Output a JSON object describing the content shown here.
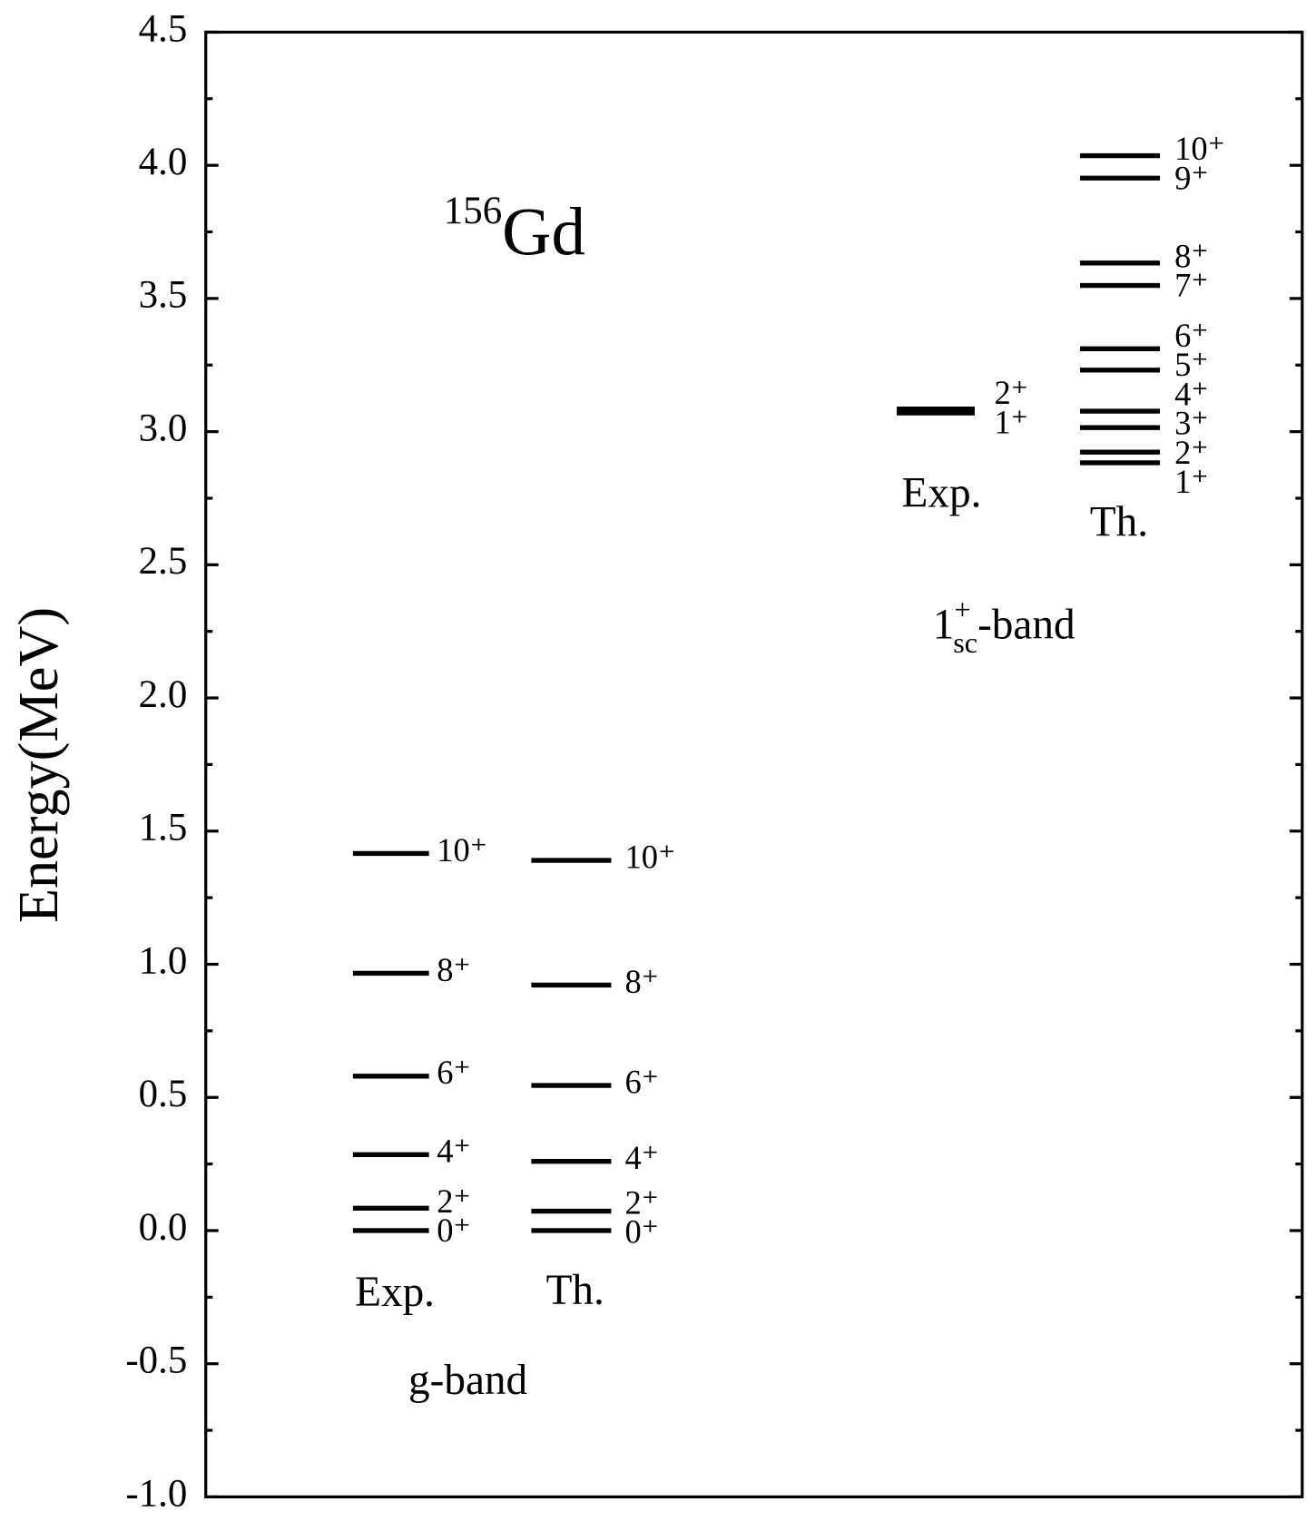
{
  "chart_data": {
    "type": "level-scheme",
    "title": {
      "mass": "156",
      "symbol": "Gd"
    },
    "ylabel": "Energy(MeV)",
    "ylim": [
      -1.0,
      4.5
    ],
    "yticks": [
      {
        "value": -1.0,
        "label": "-1.0"
      },
      -0.5,
      {
        "value": 0.0,
        "label": "0.0"
      },
      0.5,
      {
        "value": 1.0,
        "label": "1.0"
      },
      1.5,
      {
        "value": 2.0,
        "label": "2.0"
      },
      2.5,
      {
        "value": 3.0,
        "label": "3.0"
      },
      3.5,
      {
        "value": 4.0,
        "label": "4.0"
      },
      4.5
    ],
    "color": "#000000",
    "bands": [
      {
        "name": "g-band",
        "columns": [
          {
            "name": "Exp.",
            "levels": [
              0,
              0.084,
              0.285,
              0.58,
              0.966,
              1.416
            ],
            "labels": [
              "0⁺",
              "2⁺",
              "4⁺",
              "6⁺",
              "8⁺",
              "10⁺"
            ]
          },
          {
            "name": "Th.",
            "levels": [
              0,
              0.073,
              0.26,
              0.545,
              0.922,
              1.39
            ],
            "labels": [
              "0⁺",
              "2⁺",
              "4⁺",
              "6⁺",
              "8⁺",
              "10⁺"
            ]
          }
        ]
      },
      {
        "name": "-band",
        "name_main": "1",
        "name_sup": "+",
        "name_sub": "sc",
        "columns": [
          {
            "name": "Exp.",
            "levels": [
              3.07,
              3.085
            ],
            "labels": [
              "1⁺",
              "2⁺"
            ]
          },
          {
            "name": "Th.",
            "levels": [
              2.883,
              2.923,
              3.015,
              3.077,
              3.231,
              3.311,
              3.549,
              3.633,
              3.952,
              4.036
            ],
            "labels": [
              "1⁺",
              "2⁺",
              "3⁺",
              "4⁺",
              "5⁺",
              "6⁺",
              "7⁺",
              "8⁺",
              "9⁺",
              "10⁺"
            ]
          }
        ]
      }
    ]
  }
}
